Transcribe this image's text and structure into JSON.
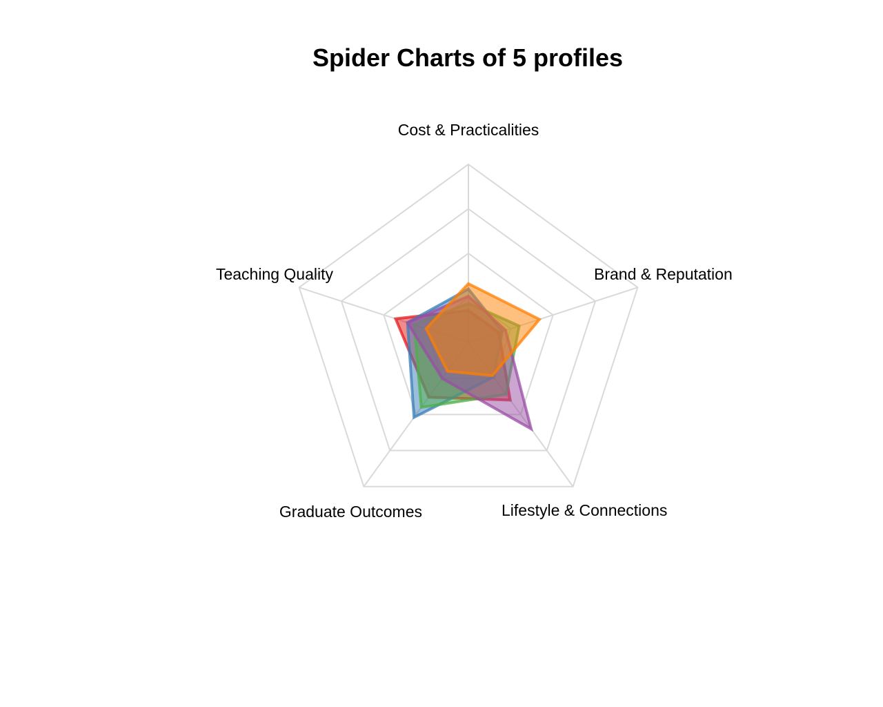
{
  "chart_data": {
    "type": "radar",
    "title": "Spider Charts of 5 profiles",
    "axes": [
      "Cost & Practicalities",
      "Brand & Reputation",
      "Lifestyle & Connections",
      "Graduate Outcomes",
      "Teaching Quality"
    ],
    "range": [
      0,
      1
    ],
    "grid_levels": 4,
    "grid": true,
    "legend": "none",
    "series": [
      {
        "values": [
          0.18,
          0.18,
          0.4,
          0.38,
          0.43
        ],
        "color": "#E41A1C"
      },
      {
        "values": [
          0.3,
          0.2,
          0.24,
          0.52,
          0.36
        ],
        "color": "#377EB8"
      },
      {
        "values": [
          0.22,
          0.3,
          0.36,
          0.45,
          0.32
        ],
        "color": "#4DAF4A"
      },
      {
        "values": [
          0.26,
          0.22,
          0.6,
          0.25,
          0.36
        ],
        "color": "#984EA3"
      },
      {
        "values": [
          0.33,
          0.42,
          0.23,
          0.2,
          0.25
        ],
        "color": "#FF7F00"
      }
    ]
  }
}
